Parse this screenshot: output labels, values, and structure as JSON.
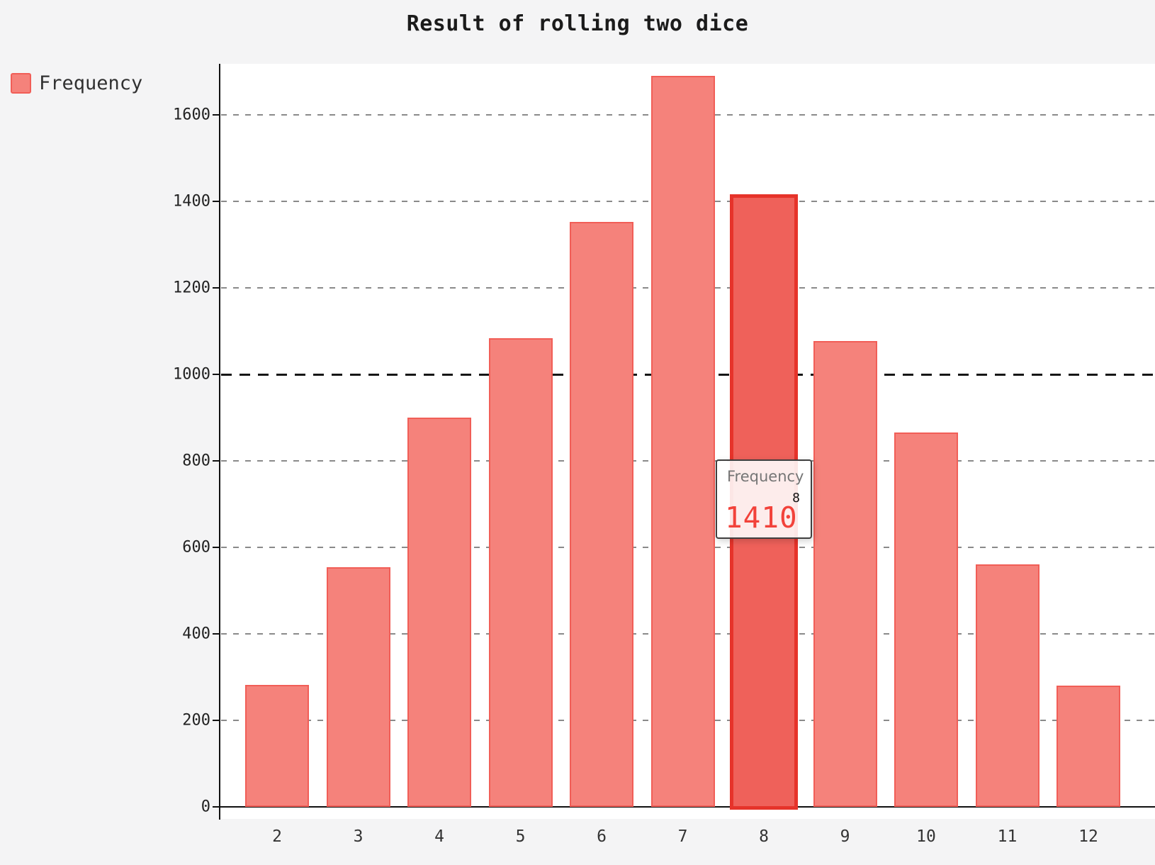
{
  "chart_data": {
    "type": "bar",
    "title": "Result of rolling two dice",
    "categories": [
      "2",
      "3",
      "4",
      "5",
      "6",
      "7",
      "8",
      "9",
      "10",
      "11",
      "12"
    ],
    "series": [
      {
        "name": "Frequency",
        "values": [
          282,
          554,
          900,
          1084,
          1352,
          1690,
          1410,
          1077,
          866,
          560,
          280
        ]
      }
    ],
    "xlabel": "",
    "ylabel": "",
    "y_ticks": [
      0,
      200,
      400,
      600,
      800,
      1000,
      1200,
      1400,
      1600
    ],
    "ylim": [
      0,
      1718
    ],
    "grid": "horizontal-dashed",
    "emphasized_gridline": 1000,
    "legend_position": "top-left",
    "highlighted": {
      "category": "8",
      "value": 1410
    }
  },
  "tooltip": {
    "series_label": "Frequency",
    "category": "8",
    "value": "1410"
  },
  "colors": {
    "page_background": "#f4f4f5",
    "plot_background": "#ffffff",
    "bar_fill": "#f5827b",
    "bar_border": "#f15e57",
    "bar_highlight_fill": "#ef615a",
    "bar_highlight_border": "#e6332a",
    "gridline": "#8a8a8a",
    "gridline_emphasized": "#161616",
    "axis_line": "#111111",
    "axis_label": "#222222",
    "title_text": "#1b1b1b",
    "legend_text": "#313131",
    "tooltip_series_text": "#757575",
    "tooltip_value_text": "#f2423a",
    "tooltip_border": "#3f3f3f"
  }
}
